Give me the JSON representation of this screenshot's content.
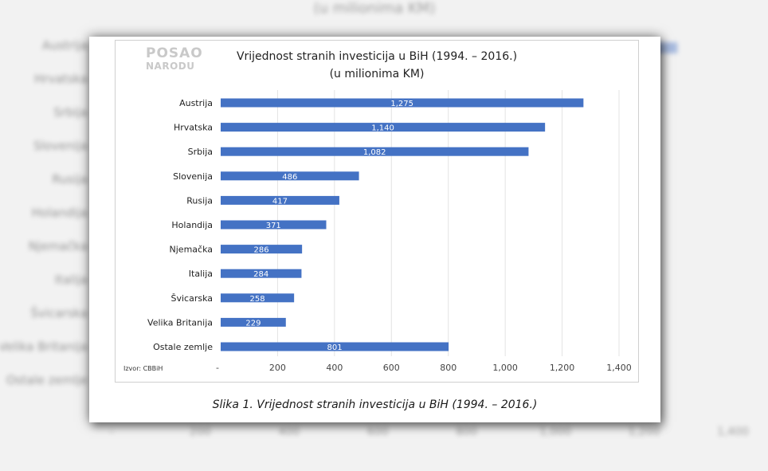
{
  "logo": {
    "line1": "POSAO",
    "line2": "NARODU"
  },
  "caption": "Slika 1. Vrijednost stranih investicija u BiH (1994. – 2016.)",
  "chart_data": {
    "type": "bar",
    "orientation": "horizontal",
    "title": "Vrijednost stranih investicija u BiH (1994. – 2016.)",
    "subtitle": "(u milionima KM)",
    "categories": [
      "Austrija",
      "Hrvatska",
      "Srbija",
      "Slovenija",
      "Rusija",
      "Holandija",
      "Njemačka",
      "Italija",
      "Švicarska",
      "Velika Britanija",
      "Ostale zemlje"
    ],
    "values": [
      1275,
      1140,
      1082,
      486,
      417,
      371,
      286,
      284,
      258,
      229,
      801
    ],
    "value_labels": [
      "1,275",
      "1,140",
      "1,082",
      "486",
      "417",
      "371",
      "286",
      "284",
      "258",
      "229",
      "801"
    ],
    "xlim": [
      0,
      1400
    ],
    "x_ticks": [
      0,
      200,
      400,
      600,
      800,
      1000,
      1200,
      1400
    ],
    "x_tick_labels": [
      "-",
      "200",
      "400",
      "600",
      "800",
      "1,000",
      "1,200",
      "1,400"
    ],
    "grid": true,
    "bar_color": "#4472c4",
    "source": "Izvor: CBBiH"
  }
}
